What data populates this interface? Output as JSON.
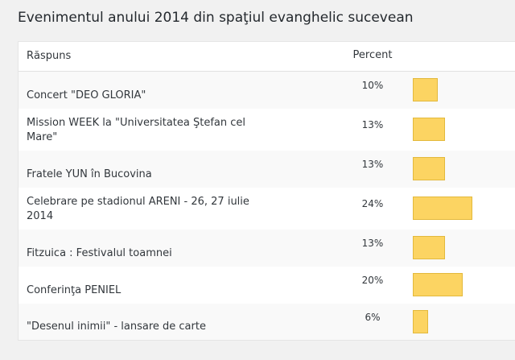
{
  "chart_data": {
    "type": "bar",
    "title": "Evenimentul anului 2014 din spaţiul evanghelic sucevean",
    "category_header": "Răspuns",
    "value_header": "Percent",
    "categories": [
      "Concert \"DEO GLORIA\"",
      "Mission WEEK la \"Universitatea Ştefan cel Mare\"",
      "Fratele YUN în Bucovina",
      "Celebrare pe stadionul ARENI - 26, 27 iulie 2014",
      "Fitzuica : Festivalul toamnei",
      "Conferinţa PENIEL",
      "\"Desenul inimii\" - lansare de carte"
    ],
    "values": [
      10,
      13,
      13,
      24,
      13,
      20,
      6
    ],
    "value_labels": [
      "10%",
      "13%",
      "13%",
      "24%",
      "13%",
      "20%",
      "6%"
    ],
    "color": "#fcd462"
  }
}
